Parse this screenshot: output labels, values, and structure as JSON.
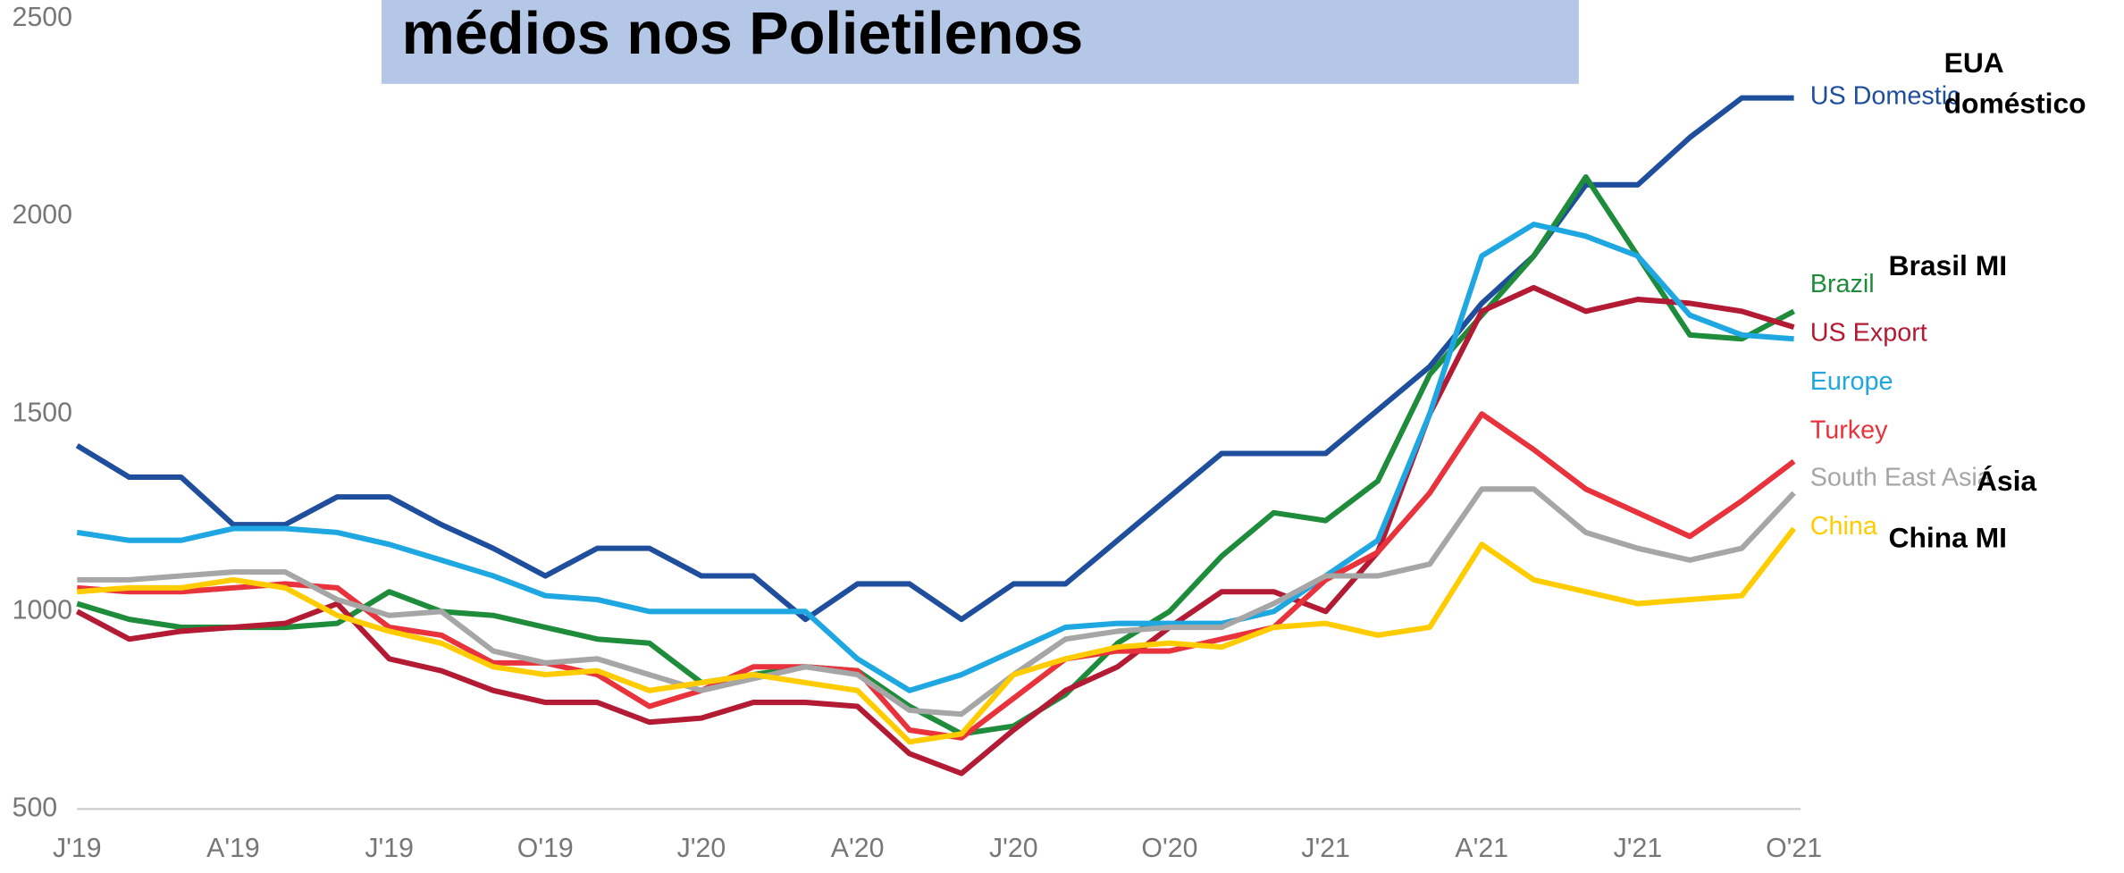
{
  "chart_data": {
    "type": "line",
    "title": "médios nos Polietilenos",
    "categories": [
      "J'19",
      null,
      null,
      "A'19",
      null,
      null,
      "J'19",
      null,
      null,
      "O'19",
      null,
      null,
      "J'20",
      null,
      null,
      "A'20",
      null,
      null,
      "J'20",
      null,
      null,
      "O'20",
      null,
      null,
      "J'21",
      null,
      null,
      "A'21",
      null,
      null,
      "J'21",
      null,
      null,
      "O'21"
    ],
    "ylim": [
      500,
      2500
    ],
    "yticks": [
      500,
      1000,
      1500,
      2000,
      2500
    ],
    "series": [
      {
        "name": "US Domestic",
        "color": "#1f4e9c",
        "values": [
          1420,
          1340,
          1340,
          1220,
          1220,
          1290,
          1290,
          1220,
          1160,
          1090,
          1160,
          1160,
          1090,
          1090,
          980,
          1070,
          1070,
          980,
          1070,
          1070,
          1180,
          1290,
          1400,
          1400,
          1400,
          1510,
          1620,
          1780,
          1900,
          2080,
          2080,
          2200,
          2300,
          2300
        ]
      },
      {
        "name": "Brazil",
        "color": "#1e8c3a",
        "values": [
          1020,
          980,
          960,
          960,
          960,
          970,
          1050,
          1000,
          990,
          960,
          930,
          920,
          820,
          840,
          860,
          850,
          760,
          690,
          710,
          790,
          920,
          1000,
          1140,
          1250,
          1230,
          1330,
          1600,
          1750,
          1900,
          2100,
          1900,
          1700,
          1690,
          1760
        ]
      },
      {
        "name": "US Export",
        "color": "#b31b34",
        "values": [
          1000,
          930,
          950,
          960,
          970,
          1020,
          880,
          850,
          800,
          770,
          770,
          720,
          730,
          770,
          770,
          760,
          640,
          590,
          700,
          800,
          860,
          960,
          1050,
          1050,
          1000,
          1150,
          1500,
          1760,
          1820,
          1760,
          1790,
          1780,
          1760,
          1720
        ]
      },
      {
        "name": "Europe",
        "color": "#1ea7e1",
        "values": [
          1200,
          1180,
          1180,
          1210,
          1210,
          1200,
          1170,
          1130,
          1090,
          1040,
          1030,
          1000,
          1000,
          1000,
          1000,
          880,
          800,
          840,
          900,
          960,
          970,
          970,
          970,
          1000,
          1090,
          1180,
          1500,
          1900,
          1980,
          1950,
          1900,
          1750,
          1700,
          1690
        ]
      },
      {
        "name": "Turkey",
        "color": "#e8333c",
        "values": [
          1060,
          1050,
          1050,
          1060,
          1070,
          1060,
          960,
          940,
          870,
          870,
          840,
          760,
          800,
          860,
          860,
          850,
          700,
          680,
          780,
          880,
          900,
          900,
          930,
          960,
          1080,
          1150,
          1300,
          1500,
          1410,
          1310,
          1250,
          1190,
          1280,
          1380
        ]
      },
      {
        "name": "South East Asia",
        "color": "#a6a6a6",
        "values": [
          1080,
          1080,
          1090,
          1100,
          1100,
          1030,
          990,
          1000,
          900,
          870,
          880,
          840,
          800,
          830,
          860,
          840,
          750,
          740,
          840,
          930,
          950,
          960,
          960,
          1020,
          1090,
          1090,
          1120,
          1310,
          1310,
          1200,
          1160,
          1130,
          1160,
          1300
        ]
      },
      {
        "name": "China",
        "color": "#ffcc00",
        "values": [
          1050,
          1060,
          1060,
          1080,
          1060,
          990,
          950,
          920,
          860,
          840,
          850,
          800,
          820,
          840,
          820,
          800,
          670,
          690,
          840,
          880,
          910,
          920,
          910,
          960,
          970,
          940,
          960,
          1170,
          1080,
          1050,
          1020,
          1030,
          1040,
          1210
        ]
      }
    ],
    "annotations": [
      "EUA",
      "doméstico",
      "Brasil MI",
      "Ásia",
      "China MI"
    ]
  }
}
